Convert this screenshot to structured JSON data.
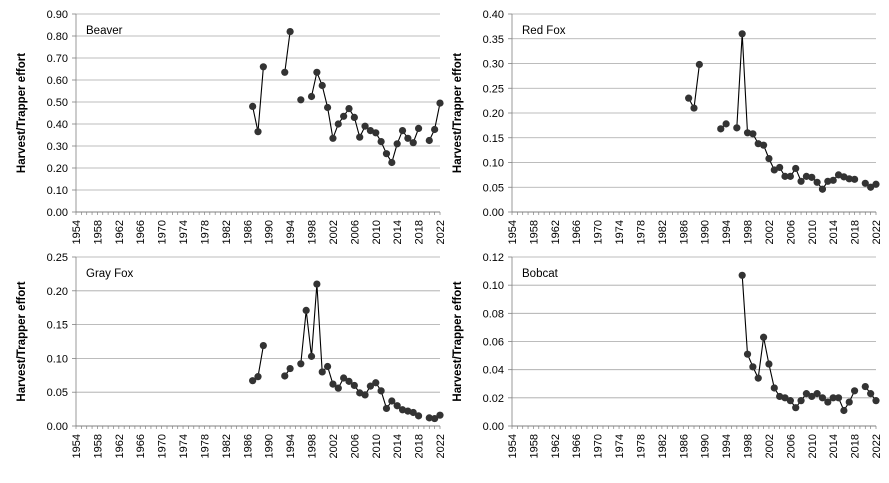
{
  "chart_data": [
    {
      "type": "line",
      "title": "Beaver",
      "ylabel": "Harvest/Trapper effort",
      "xlabel": "",
      "ylim": [
        0,
        0.9
      ],
      "yticks": [
        "0.00",
        "0.10",
        "0.20",
        "0.30",
        "0.40",
        "0.50",
        "0.60",
        "0.70",
        "0.80",
        "0.90"
      ],
      "xlim": [
        1954,
        2022
      ],
      "xtick_labels": [
        "1954",
        "1958",
        "1962",
        "1966",
        "1970",
        "1974",
        "1978",
        "1982",
        "1986",
        "1990",
        "1994",
        "1998",
        "2002",
        "2006",
        "2010",
        "2014",
        "2018",
        "2022"
      ],
      "segments": [
        [
          [
            1987,
            0.48
          ],
          [
            1988,
            0.365
          ],
          [
            1989,
            0.66
          ]
        ],
        [
          [
            1993,
            0.635
          ],
          [
            1994,
            0.82
          ]
        ],
        [
          [
            1996,
            0.51
          ]
        ],
        [
          [
            1998,
            0.525
          ],
          [
            1999,
            0.635
          ],
          [
            2000,
            0.575
          ],
          [
            2001,
            0.475
          ],
          [
            2002,
            0.335
          ],
          [
            2003,
            0.4
          ],
          [
            2004,
            0.435
          ],
          [
            2005,
            0.47
          ],
          [
            2006,
            0.43
          ],
          [
            2007,
            0.34
          ],
          [
            2008,
            0.39
          ],
          [
            2009,
            0.37
          ],
          [
            2010,
            0.36
          ],
          [
            2011,
            0.32
          ],
          [
            2012,
            0.265
          ],
          [
            2013,
            0.225
          ],
          [
            2014,
            0.31
          ],
          [
            2015,
            0.37
          ],
          [
            2016,
            0.335
          ],
          [
            2017,
            0.315
          ],
          [
            2018,
            0.38
          ]
        ],
        [
          [
            2020,
            0.325
          ],
          [
            2021,
            0.375
          ],
          [
            2022,
            0.495
          ]
        ]
      ]
    },
    {
      "type": "line",
      "title": "Red Fox",
      "ylabel": "Harvest/Trapper effort",
      "xlabel": "",
      "ylim": [
        0,
        0.4
      ],
      "yticks": [
        "0.00",
        "0.05",
        "0.10",
        "0.15",
        "0.20",
        "0.25",
        "0.30",
        "0.35",
        "0.40"
      ],
      "xlim": [
        1954,
        2022
      ],
      "xtick_labels": [
        "1954",
        "1958",
        "1962",
        "1966",
        "1970",
        "1974",
        "1978",
        "1982",
        "1986",
        "1990",
        "1994",
        "1998",
        "2002",
        "2006",
        "2010",
        "2014",
        "2018",
        "2022"
      ],
      "segments": [
        [
          [
            1987,
            0.23
          ],
          [
            1988,
            0.21
          ],
          [
            1989,
            0.298
          ]
        ],
        [
          [
            1993,
            0.168
          ],
          [
            1994,
            0.178
          ]
        ],
        [
          [
            1996,
            0.17
          ],
          [
            1997,
            0.36
          ],
          [
            1998,
            0.16
          ],
          [
            1999,
            0.158
          ],
          [
            2000,
            0.138
          ],
          [
            2001,
            0.135
          ],
          [
            2002,
            0.108
          ],
          [
            2003,
            0.085
          ],
          [
            2004,
            0.09
          ],
          [
            2005,
            0.072
          ],
          [
            2006,
            0.072
          ],
          [
            2007,
            0.088
          ],
          [
            2008,
            0.062
          ],
          [
            2009,
            0.072
          ],
          [
            2010,
            0.07
          ],
          [
            2011,
            0.06
          ],
          [
            2012,
            0.046
          ],
          [
            2013,
            0.062
          ],
          [
            2014,
            0.064
          ],
          [
            2015,
            0.075
          ],
          [
            2016,
            0.071
          ],
          [
            2017,
            0.067
          ],
          [
            2018,
            0.066
          ]
        ],
        [
          [
            2020,
            0.058
          ],
          [
            2021,
            0.05
          ],
          [
            2022,
            0.056
          ]
        ]
      ]
    },
    {
      "type": "line",
      "title": "Gray Fox",
      "ylabel": "Harvest/Trapper effort",
      "xlabel": "",
      "ylim": [
        0,
        0.25
      ],
      "yticks": [
        "0.00",
        "0.05",
        "0.10",
        "0.15",
        "0.20",
        "0.25"
      ],
      "xlim": [
        1954,
        2022
      ],
      "xtick_labels": [
        "1954",
        "1958",
        "1962",
        "1966",
        "1970",
        "1974",
        "1978",
        "1982",
        "1986",
        "1990",
        "1994",
        "1998",
        "2002",
        "2006",
        "2010",
        "2014",
        "2018",
        "2022"
      ],
      "segments": [
        [
          [
            1987,
            0.067
          ],
          [
            1988,
            0.073
          ],
          [
            1989,
            0.119
          ]
        ],
        [
          [
            1993,
            0.074
          ],
          [
            1994,
            0.085
          ]
        ],
        [
          [
            1996,
            0.092
          ],
          [
            1997,
            0.171
          ],
          [
            1998,
            0.103
          ],
          [
            1999,
            0.21
          ],
          [
            2000,
            0.08
          ],
          [
            2001,
            0.088
          ],
          [
            2002,
            0.062
          ],
          [
            2003,
            0.056
          ],
          [
            2004,
            0.071
          ],
          [
            2005,
            0.066
          ],
          [
            2006,
            0.06
          ],
          [
            2007,
            0.049
          ],
          [
            2008,
            0.046
          ],
          [
            2009,
            0.059
          ],
          [
            2010,
            0.064
          ],
          [
            2011,
            0.052
          ],
          [
            2012,
            0.026
          ],
          [
            2013,
            0.037
          ],
          [
            2014,
            0.03
          ],
          [
            2015,
            0.024
          ],
          [
            2016,
            0.022
          ],
          [
            2017,
            0.02
          ],
          [
            2018,
            0.015
          ]
        ],
        [
          [
            2020,
            0.012
          ],
          [
            2021,
            0.011
          ],
          [
            2022,
            0.016
          ]
        ]
      ]
    },
    {
      "type": "line",
      "title": "Bobcat",
      "ylabel": "Harvest/Trapper effort",
      "xlabel": "",
      "ylim": [
        0,
        0.12
      ],
      "yticks": [
        "0.00",
        "0.02",
        "0.04",
        "0.06",
        "0.08",
        "0.10",
        "0.12"
      ],
      "xlim": [
        1954,
        2022
      ],
      "xtick_labels": [
        "1954",
        "1958",
        "1962",
        "1966",
        "1970",
        "1974",
        "1978",
        "1982",
        "1986",
        "1990",
        "1994",
        "1998",
        "2002",
        "2006",
        "2010",
        "2014",
        "2018",
        "2022"
      ],
      "segments": [
        [
          [
            1997,
            0.107
          ],
          [
            1998,
            0.051
          ],
          [
            1999,
            0.042
          ],
          [
            2000,
            0.034
          ],
          [
            2001,
            0.063
          ],
          [
            2002,
            0.044
          ],
          [
            2003,
            0.027
          ],
          [
            2004,
            0.021
          ],
          [
            2005,
            0.02
          ],
          [
            2006,
            0.018
          ],
          [
            2007,
            0.013
          ],
          [
            2008,
            0.018
          ],
          [
            2009,
            0.023
          ],
          [
            2010,
            0.021
          ],
          [
            2011,
            0.023
          ],
          [
            2012,
            0.02
          ],
          [
            2013,
            0.017
          ],
          [
            2014,
            0.02
          ],
          [
            2015,
            0.02
          ],
          [
            2016,
            0.011
          ],
          [
            2017,
            0.017
          ],
          [
            2018,
            0.025
          ]
        ],
        [
          [
            2020,
            0.028
          ],
          [
            2021,
            0.023
          ],
          [
            2022,
            0.018
          ]
        ]
      ]
    }
  ]
}
